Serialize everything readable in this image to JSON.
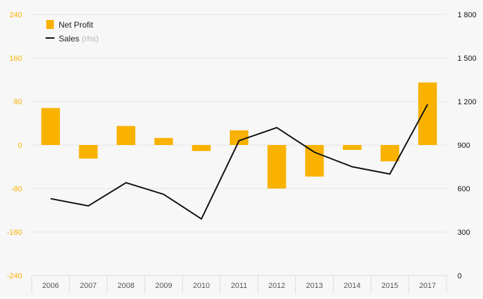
{
  "chart_data": {
    "type": "bar",
    "categories": [
      "2006",
      "2007",
      "2008",
      "2009",
      "2010",
      "2011",
      "2012",
      "2013",
      "2014",
      "2015",
      "2017"
    ],
    "series": [
      {
        "name": "Net Profit",
        "type": "bar",
        "axis": "left",
        "color": "#f9b200",
        "values": [
          68,
          -25,
          35,
          13,
          -11,
          27,
          -80,
          -58,
          -9,
          -30,
          115
        ]
      },
      {
        "name": "Sales",
        "name_suffix": "(rhs)",
        "type": "line",
        "axis": "right",
        "color": "#111111",
        "values": [
          530,
          480,
          640,
          560,
          390,
          930,
          1020,
          850,
          750,
          700,
          1180
        ]
      }
    ],
    "y_left": {
      "ylim": [
        -240,
        240
      ],
      "ticks": [
        240,
        160,
        80,
        0,
        -80,
        -160,
        -240
      ],
      "tick_labels": [
        "240",
        "160",
        "80",
        "0",
        "-80",
        "-160",
        "-240"
      ],
      "color": "#f9b200"
    },
    "y_right": {
      "ylim": [
        0,
        1800
      ],
      "ticks": [
        1800,
        1500,
        1200,
        900,
        600,
        300,
        0
      ],
      "tick_labels": [
        "1 800",
        "1 500",
        "1 200",
        "900",
        "600",
        "300",
        "0"
      ]
    },
    "grid": true,
    "legend": {
      "position": "top-left",
      "items": [
        "Net Profit",
        "Sales"
      ]
    }
  }
}
